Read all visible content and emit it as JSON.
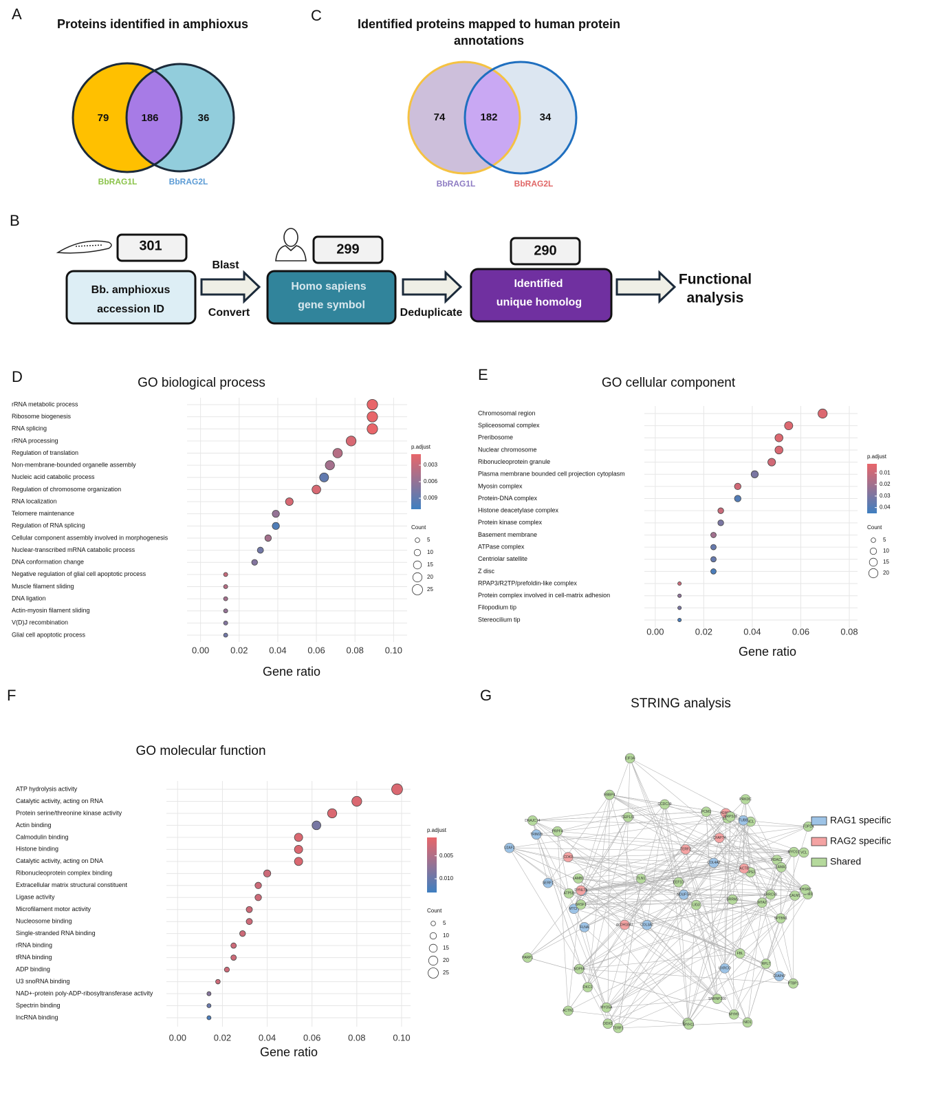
{
  "panel_a": {
    "letter": "A",
    "title": "Proteins identified in amphioxus",
    "sets": [
      "BbRAG1L",
      "BbRAG2L"
    ],
    "counts": [
      79,
      186,
      36
    ]
  },
  "panel_c": {
    "letter": "C",
    "title": [
      "Identified proteins mapped to human protein",
      "annotations"
    ],
    "sets": [
      "BbRAG1L",
      "BbRAG2L"
    ],
    "counts": [
      74,
      182,
      34
    ]
  },
  "panel_b": {
    "letter": "B",
    "steps": [
      {
        "count": 301,
        "label": [
          "Bb. amphioxus",
          "accession ID"
        ]
      },
      {
        "count": 299,
        "label": [
          "Homo  sapiens",
          "gene symbol"
        ]
      },
      {
        "count": 290,
        "label": [
          "Identified",
          "unique homolog"
        ]
      }
    ],
    "arrows": [
      [
        "Blast",
        "Convert"
      ],
      [
        "Deduplicate"
      ]
    ],
    "result": [
      "Functional",
      "analysis"
    ]
  },
  "chart_data": [
    {
      "type": "dot",
      "letter": "D",
      "title": "GO biological process",
      "x_label": "Gene ratio",
      "categories": [
        "rRNA metabolic process",
        "Ribosome biogenesis",
        "RNA splicing",
        "rRNA processing",
        "Regulation of translation",
        "Non-membrane-bounded organelle assembly",
        "Nucleic acid catabolic process",
        "Regulation of chromosome organization",
        "RNA localization",
        "Telomere maintenance",
        "Regulation of RNA splicing",
        "Cellular component assembly involved in morphogenesis",
        "Nuclear-transcribed mRNA catabolic process",
        "DNA conformation change",
        "Negative regulation of glial cell apoptotic process",
        "Muscle filament sliding",
        "DNA ligation",
        "Actin-myosin filament sliding",
        "V(D)J recombination",
        "Glial cell apoptotic process"
      ],
      "values": [
        0.089,
        0.089,
        0.089,
        0.078,
        0.071,
        0.067,
        0.064,
        0.06,
        0.046,
        0.039,
        0.039,
        0.035,
        0.031,
        0.028,
        0.013,
        0.013,
        0.013,
        0.013,
        0.013,
        0.013
      ],
      "padjust": [
        0.001,
        0.001,
        0.001,
        0.002,
        0.004,
        0.005,
        0.009,
        0.002,
        0.002,
        0.006,
        0.01,
        0.005,
        0.008,
        0.007,
        0.003,
        0.004,
        0.005,
        0.006,
        0.007,
        0.008
      ],
      "count": [
        26,
        26,
        26,
        23,
        21,
        20,
        19,
        18,
        14,
        12,
        12,
        10,
        9,
        8,
        4,
        4,
        4,
        4,
        4,
        4
      ],
      "xlim": [
        -0.007,
        0.107
      ],
      "xticks": [
        {
          "value": 0,
          "label": "0.00"
        },
        {
          "value": 0.02,
          "label": "0.02"
        },
        {
          "value": 0.04,
          "label": "0.04"
        },
        {
          "value": 0.06,
          "label": "0.06"
        },
        {
          "value": 0.08,
          "label": "0.08"
        },
        {
          "value": 0.1,
          "label": "0.10"
        }
      ],
      "color_label": "p.adjust",
      "colormap": [
        "#e8666a",
        "#3f7fc0"
      ],
      "clim": [
        0.001,
        0.011
      ],
      "cticks": [
        0.003,
        0.006,
        0.009
      ],
      "size_label": "Count",
      "size_ticks": [
        5,
        10,
        15,
        20,
        25
      ],
      "grid": true
    },
    {
      "type": "dot",
      "letter": "E",
      "title": "GO cellular component",
      "x_label": "Gene ratio",
      "categories": [
        "Chromosomal region",
        "Spliceosomal complex",
        "Preribosome",
        "Nuclear chromosome",
        "Ribonucleoprotein granule",
        "Plasma membrane bounded cell projection cytoplasm",
        "Myosin complex",
        "Protein-DNA complex",
        "Histone deacetylase complex",
        "Protein kinase complex",
        "Basement membrane",
        "ATPase complex",
        "Centriolar satellite",
        "Z disc",
        "RPAP3/R2TP/prefoldin-like complex",
        "Protein complex involved in cell-matrix adhesion",
        "Filopodium tip",
        "Stereocilium tip"
      ],
      "values": [
        0.069,
        0.055,
        0.051,
        0.051,
        0.048,
        0.041,
        0.034,
        0.034,
        0.027,
        0.027,
        0.024,
        0.024,
        0.024,
        0.024,
        0.01,
        0.01,
        0.01,
        0.01
      ],
      "padjust": [
        0.005,
        0.005,
        0.005,
        0.006,
        0.008,
        0.03,
        0.008,
        0.04,
        0.01,
        0.03,
        0.02,
        0.035,
        0.035,
        0.042,
        0.01,
        0.025,
        0.03,
        0.042
      ],
      "count": [
        20,
        16,
        15,
        15,
        14,
        12,
        10,
        10,
        8,
        8,
        7,
        7,
        7,
        7,
        3,
        3,
        3,
        3
      ],
      "xlim": [
        -0.0045,
        0.0834
      ],
      "xticks": [
        {
          "value": 0,
          "label": "0.00"
        },
        {
          "value": 0.02,
          "label": "0.02"
        },
        {
          "value": 0.04,
          "label": "0.04"
        },
        {
          "value": 0.06,
          "label": "0.06"
        },
        {
          "value": 0.08,
          "label": "0.08"
        }
      ],
      "color_label": "p.adjust",
      "colormap": [
        "#e8666a",
        "#3f7fc0"
      ],
      "clim": [
        0.002,
        0.045
      ],
      "cticks": [
        0.01,
        0.02,
        0.03,
        0.04
      ],
      "size_label": "Count",
      "size_ticks": [
        5,
        10,
        15,
        20
      ],
      "grid": true
    },
    {
      "type": "dot",
      "letter": "F",
      "title": "GO molecular function",
      "x_label": "Gene ratio",
      "categories": [
        "ATP hydrolysis activity",
        "Catalytic activity, acting on RNA",
        "Protein serine/threonine kinase activity",
        "Actin binding",
        "Calmodulin binding",
        "Histone binding",
        "Catalytic activity, acting on DNA",
        "Ribonucleoprotein complex binding",
        "Extracellular matrix structural constituent",
        "Ligase activity",
        "Microfilament motor activity",
        "Nucleosome binding",
        "Single-stranded RNA binding",
        "rRNA binding",
        "tRNA binding",
        "ADP binding",
        "U3 snoRNA binding",
        "NAD+-protein poly-ADP-ribosyltransferase activity",
        "Spectrin binding",
        "lncRNA binding"
      ],
      "values": [
        0.098,
        0.08,
        0.069,
        0.062,
        0.054,
        0.054,
        0.054,
        0.04,
        0.036,
        0.036,
        0.032,
        0.032,
        0.029,
        0.025,
        0.025,
        0.022,
        0.018,
        0.014,
        0.014,
        0.014
      ],
      "padjust": [
        0.002,
        0.002,
        0.002,
        0.009,
        0.002,
        0.002,
        0.002,
        0.003,
        0.003,
        0.003,
        0.003,
        0.003,
        0.003,
        0.003,
        0.003,
        0.003,
        0.003,
        0.008,
        0.01,
        0.012
      ],
      "count": [
        28,
        23,
        20,
        18,
        16,
        16,
        16,
        12,
        10,
        10,
        9,
        9,
        8,
        7,
        7,
        6,
        5,
        4,
        4,
        4
      ],
      "xlim": [
        -0.005,
        0.104
      ],
      "xticks": [
        {
          "value": 0,
          "label": "0.00"
        },
        {
          "value": 0.02,
          "label": "0.02"
        },
        {
          "value": 0.04,
          "label": "0.04"
        },
        {
          "value": 0.06,
          "label": "0.06"
        },
        {
          "value": 0.08,
          "label": "0.08"
        },
        {
          "value": 0.1,
          "label": "0.10"
        }
      ],
      "color_label": "p.adjust",
      "colormap": [
        "#e8666a",
        "#3f7fc0"
      ],
      "clim": [
        0.001,
        0.013
      ],
      "cticks": [
        {
          "value": 0.005,
          "label": "0.005"
        },
        {
          "value": 0.01,
          "label": "0.010"
        }
      ],
      "size_label": "Count",
      "size_ticks": [
        5,
        10,
        15,
        20,
        25
      ],
      "grid": true
    }
  ],
  "network": {
    "letter": "G",
    "title": "STRING analysis",
    "groups": [
      {
        "name": "RAG1 specific",
        "color": "#9dc3e6"
      },
      {
        "name": "RAG2 specific",
        "color": "#f4a3a3"
      },
      {
        "name": "Shared",
        "color": "#b5d99c"
      }
    ],
    "nodes": [
      {
        "label": "LRRC59",
        "group": 2
      },
      {
        "label": "COL3A1",
        "group": 0
      },
      {
        "label": "CHD4",
        "group": 2
      },
      {
        "label": "SERF1",
        "group": 0
      },
      {
        "label": "MTCH",
        "group": 0
      },
      {
        "label": "EIF2C",
        "group": 2
      },
      {
        "label": "UXRCO",
        "group": 0
      },
      {
        "label": "DNAJC14",
        "group": 2
      },
      {
        "label": "ALDH18A1",
        "group": 1
      },
      {
        "label": "MYH11",
        "group": 2
      },
      {
        "label": "PRPF4",
        "group": 2
      },
      {
        "label": "SRSF1",
        "group": 2
      },
      {
        "label": "DDX5",
        "group": 2
      },
      {
        "label": "SRRM2",
        "group": 2
      },
      {
        "label": "TRIM28",
        "group": 0
      },
      {
        "label": "MTA2",
        "group": 2
      },
      {
        "label": "NCL",
        "group": 2
      },
      {
        "label": "RPL7",
        "group": 2
      },
      {
        "label": "RPS3",
        "group": 2
      },
      {
        "label": "EEF1D",
        "group": 2
      },
      {
        "label": "EIF3A",
        "group": 2
      },
      {
        "label": "ACTB",
        "group": 1
      },
      {
        "label": "MYH9",
        "group": 2
      },
      {
        "label": "MYO1C",
        "group": 2
      },
      {
        "label": "TPM3",
        "group": 2
      },
      {
        "label": "FLNA",
        "group": 0
      },
      {
        "label": "TLN1",
        "group": 2
      },
      {
        "label": "VCL",
        "group": 2
      },
      {
        "label": "ACTN1",
        "group": 2
      },
      {
        "label": "CALM1",
        "group": 2
      },
      {
        "label": "HDAC2",
        "group": 2
      },
      {
        "label": "RBBP4",
        "group": 2
      },
      {
        "label": "H2AFZ",
        "group": 1
      },
      {
        "label": "TOP2A",
        "group": 2
      },
      {
        "label": "PARP1",
        "group": 2
      },
      {
        "label": "XRCC5",
        "group": 0
      },
      {
        "label": "LIG3",
        "group": 2
      },
      {
        "label": "TERF2",
        "group": 1
      },
      {
        "label": "DKC1",
        "group": 2
      },
      {
        "label": "NOP56",
        "group": 2
      },
      {
        "label": "FBL",
        "group": 2
      },
      {
        "label": "SNRNP200",
        "group": 2
      },
      {
        "label": "U2AF2",
        "group": 0
      },
      {
        "label": "PTBP1",
        "group": 2
      },
      {
        "label": "KHSRP",
        "group": 2
      },
      {
        "label": "CDK9",
        "group": 1
      },
      {
        "label": "PRKDC",
        "group": 2
      },
      {
        "label": "ATP5B",
        "group": 2
      },
      {
        "label": "LAMB1",
        "group": 2
      },
      {
        "label": "LAMA1",
        "group": 2
      },
      {
        "label": "COL4A2",
        "group": 0
      },
      {
        "label": "NID1",
        "group": 2
      },
      {
        "label": "CEP131",
        "group": 2
      },
      {
        "label": "PCM1",
        "group": 2
      },
      {
        "label": "TUBB",
        "group": 0
      },
      {
        "label": "DYNLT1",
        "group": 1
      },
      {
        "label": "CFAP47",
        "group": 0
      },
      {
        "label": "CFAP74",
        "group": 1
      },
      {
        "label": "CCDC39",
        "group": 2
      },
      {
        "label": "MRPS15",
        "group": 2
      },
      {
        "label": "NDUFS4",
        "group": 0
      },
      {
        "label": "SPTBN1",
        "group": 2
      },
      {
        "label": "TERF1",
        "group": 2
      },
      {
        "label": "MYO5A",
        "group": 2
      }
    ]
  }
}
